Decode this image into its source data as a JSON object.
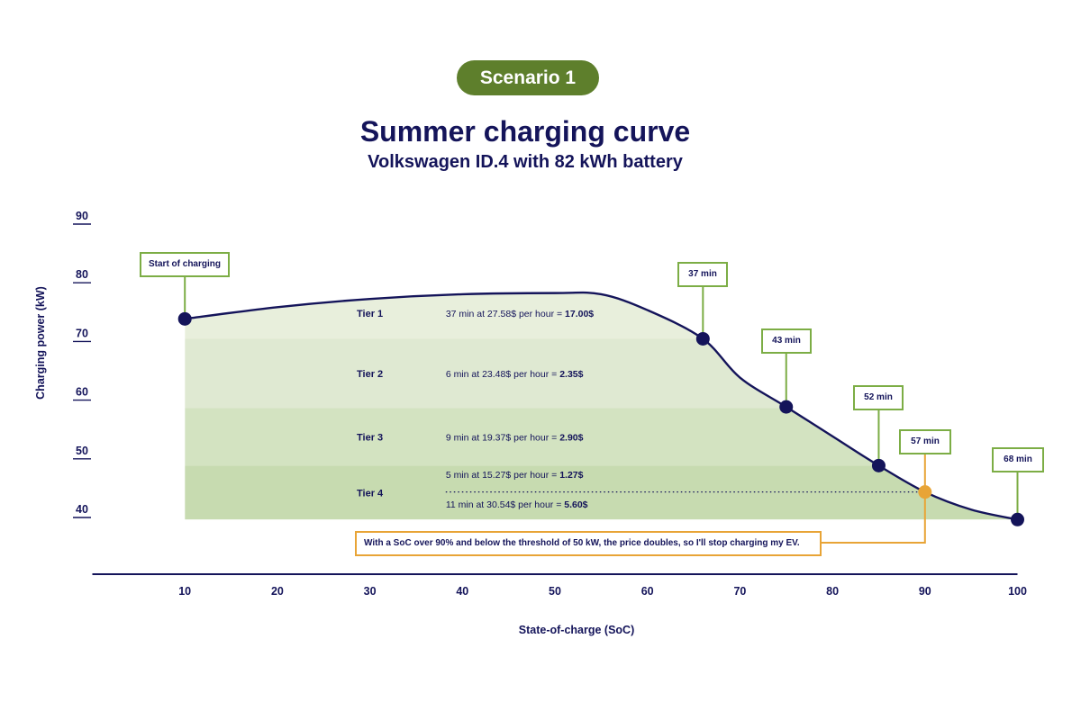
{
  "scenario_badge": "Scenario 1",
  "title": "Summer charging curve",
  "subtitle": "Volkswagen ID.4 with 82 kWh battery",
  "colors": {
    "navy": "#14145a",
    "badge_green": "#5e7f2c",
    "callout_green": "#7cad45",
    "tier1_fill": "#e8efdc",
    "tier2_fill": "#dfe9d2",
    "tier3_fill": "#d3e3c1",
    "tier4_fill": "#c7dbb0",
    "highlight_orange": "#e8a436"
  },
  "chart_data": {
    "type": "line",
    "xlabel": "State-of-charge (SoC)",
    "ylabel": "Charging power (kW)",
    "xlim": [
      0,
      100
    ],
    "ylim": [
      40,
      90
    ],
    "x_ticks": [
      10,
      20,
      30,
      40,
      50,
      60,
      70,
      80,
      90,
      100
    ],
    "y_ticks": [
      40,
      50,
      60,
      70,
      80,
      90
    ],
    "curve": {
      "x": [
        10,
        20,
        30,
        40,
        50,
        55,
        60,
        66,
        70,
        75,
        80,
        85,
        90,
        95,
        100
      ],
      "y": [
        74,
        76,
        77.4,
        78.2,
        78.4,
        78.2,
        75.5,
        70.6,
        64,
        59,
        54,
        49,
        44.5,
        41.5,
        39.8
      ]
    },
    "tiers": [
      {
        "name": "Tier 1",
        "y_from": 70.6,
        "y_to": 80,
        "texts": [
          {
            "prefix": "37 min at 27.58$ per hour = ",
            "bold": "17.00$"
          }
        ]
      },
      {
        "name": "Tier 2",
        "y_from": 58.8,
        "y_to": 70.6,
        "texts": [
          {
            "prefix": "6 min at 23.48$ per hour = ",
            "bold": "2.35$"
          }
        ]
      },
      {
        "name": "Tier 3",
        "y_from": 49,
        "y_to": 58.8,
        "texts": [
          {
            "prefix": "9 min at 19.37$ per hour =  ",
            "bold": "2.90$"
          }
        ]
      },
      {
        "name": "Tier 4",
        "y_from": 39.8,
        "y_to": 49,
        "texts": [
          {
            "prefix": "5 min at 15.27$ per hour = ",
            "bold": "1.27$"
          },
          {
            "prefix": "11 min at 30.54$ per hour = ",
            "bold": "5.60$"
          }
        ]
      }
    ],
    "threshold_y": 44.5,
    "markers": [
      {
        "label": "Start of charging",
        "x": 10,
        "y": 74,
        "highlight": false
      },
      {
        "label": "37 min",
        "x": 66,
        "y": 70.6,
        "highlight": false
      },
      {
        "label": "43 min",
        "x": 75,
        "y": 59,
        "highlight": false
      },
      {
        "label": "52 min",
        "x": 85,
        "y": 49,
        "highlight": false
      },
      {
        "label": "57 min",
        "x": 90,
        "y": 44.5,
        "highlight": true
      },
      {
        "label": "68 min",
        "x": 100,
        "y": 39.8,
        "highlight": false
      }
    ],
    "note": "With a SoC over 90% and below the threshold of 50 kW, the price doubles, so I'll stop charging my EV."
  }
}
